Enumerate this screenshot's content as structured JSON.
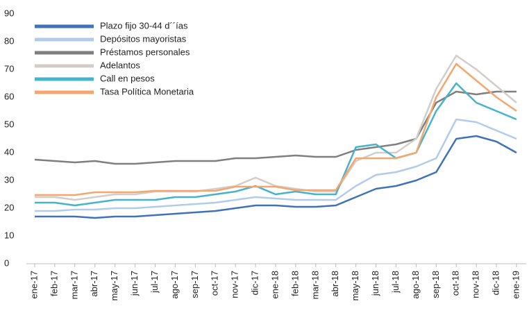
{
  "chart_data": {
    "type": "line",
    "categories": [
      "ene-17",
      "feb-17",
      "mar-17",
      "abr-17",
      "may-17",
      "jun-17",
      "jul-17",
      "ago-17",
      "sep-17",
      "oct-17",
      "nov-17",
      "dic-17",
      "ene-18",
      "feb-18",
      "mar-18",
      "abr-18",
      "may-18",
      "jun-18",
      "jul-18",
      "ago-18",
      "sep-18",
      "oct-18",
      "nov-18",
      "dic-18",
      "ene-19"
    ],
    "series": [
      {
        "name": "Plazo fijo 30-44 d´´ías",
        "color": "#3f72b8",
        "values": [
          17,
          17,
          17,
          16.5,
          17,
          17,
          17.5,
          18,
          18.5,
          19,
          20,
          21,
          21,
          20.5,
          20.5,
          21,
          24,
          27,
          28,
          30,
          33,
          45,
          46,
          44,
          40
        ]
      },
      {
        "name": "Depósitos mayoristas",
        "color": "#b3cbea",
        "values": [
          19,
          19,
          19.5,
          19.5,
          20,
          20,
          20.5,
          21,
          21.5,
          22,
          23,
          24,
          23.5,
          23,
          23,
          23,
          28,
          32,
          33,
          35,
          38,
          52,
          51,
          48,
          45
        ]
      },
      {
        "name": "Préstamos personales",
        "color": "#7f7f80",
        "values": [
          37.5,
          37,
          36.5,
          37,
          36,
          36,
          36.5,
          37,
          37,
          37,
          38,
          38,
          38.5,
          39,
          38.5,
          38.5,
          41,
          42,
          43,
          45,
          58,
          62,
          61,
          62,
          62
        ]
      },
      {
        "name": "Adelantos",
        "color": "#d3cdca",
        "values": [
          24,
          24,
          23,
          24,
          25,
          25,
          26,
          26,
          26,
          27,
          28,
          31,
          28,
          27,
          26,
          26,
          37,
          40,
          40,
          45,
          63,
          75,
          70,
          64,
          58
        ]
      },
      {
        "name": "Call en pesos",
        "color": "#45b3cc",
        "values": [
          22,
          22,
          21,
          22,
          23,
          23,
          23,
          24,
          24,
          25,
          26,
          28,
          25,
          26,
          25,
          25,
          42,
          43,
          38,
          40,
          55,
          65,
          58,
          55,
          52
        ]
      },
      {
        "name": "Tasa Política Monetaria",
        "color": "#f5a66e",
        "values": [
          24.75,
          24.75,
          24.75,
          25.75,
          25.75,
          25.75,
          26.25,
          26.25,
          26.25,
          26.25,
          27.75,
          27.75,
          27.75,
          26.5,
          26.5,
          26.5,
          38,
          38,
          38,
          40,
          60,
          72,
          66,
          60,
          55
        ]
      }
    ],
    "ylim": [
      0,
      90
    ],
    "yticks": [
      0,
      10,
      20,
      30,
      40,
      50,
      60,
      70,
      80,
      90
    ],
    "legend": "top-left"
  }
}
